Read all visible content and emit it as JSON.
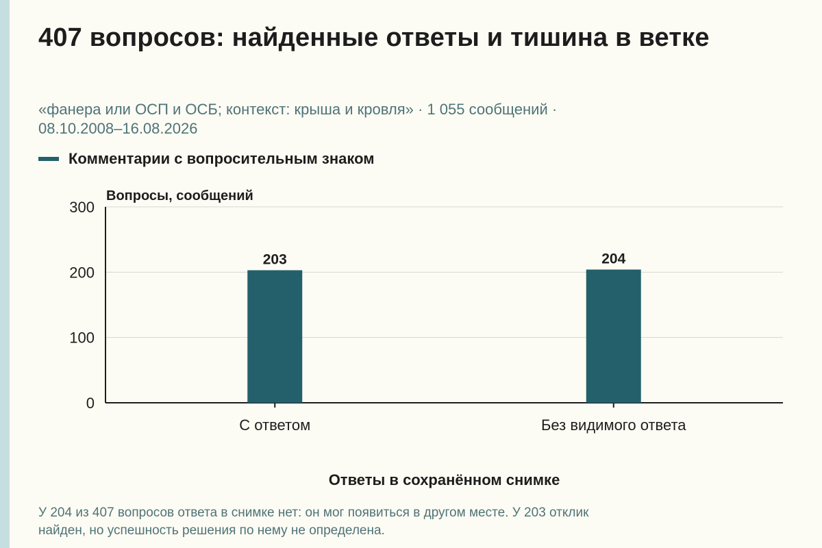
{
  "title": "407 вопросов: найденные ответы и тишина в ветке",
  "subtitle_line1": "«фанера или ОСП и ОСБ; контекст: крыша и кровля» · 1 055 сообщений ·",
  "subtitle_line2": "08.10.2008–16.08.2026",
  "footnote_line1": "У 204 из 407 вопросов ответа в снимке нет: он мог появиться в другом месте. У 203 отклик",
  "footnote_line2": "найден, но успешность решения по нему не определена.",
  "colors": {
    "bar": "#24606b",
    "accent": "#c5dfe0",
    "background": "#fdfcf4",
    "muted_text": "#4f7377"
  },
  "chart_data": {
    "type": "bar",
    "categories": [
      "С ответом",
      "Без видимого ответа"
    ],
    "series": [
      {
        "name": "Комментарии с вопросительным знаком",
        "values": [
          203,
          204
        ]
      }
    ],
    "data_labels": [
      "203",
      "204"
    ],
    "ylabel": "Вопросы, сообщений",
    "xlabel": "Ответы в сохранённом снимке",
    "ylim": [
      0,
      300
    ],
    "yticks": [
      0,
      100,
      200,
      300
    ],
    "ytick_labels": [
      "0",
      "100",
      "200",
      "300"
    ],
    "grid": true,
    "legend_position": "top-left"
  }
}
